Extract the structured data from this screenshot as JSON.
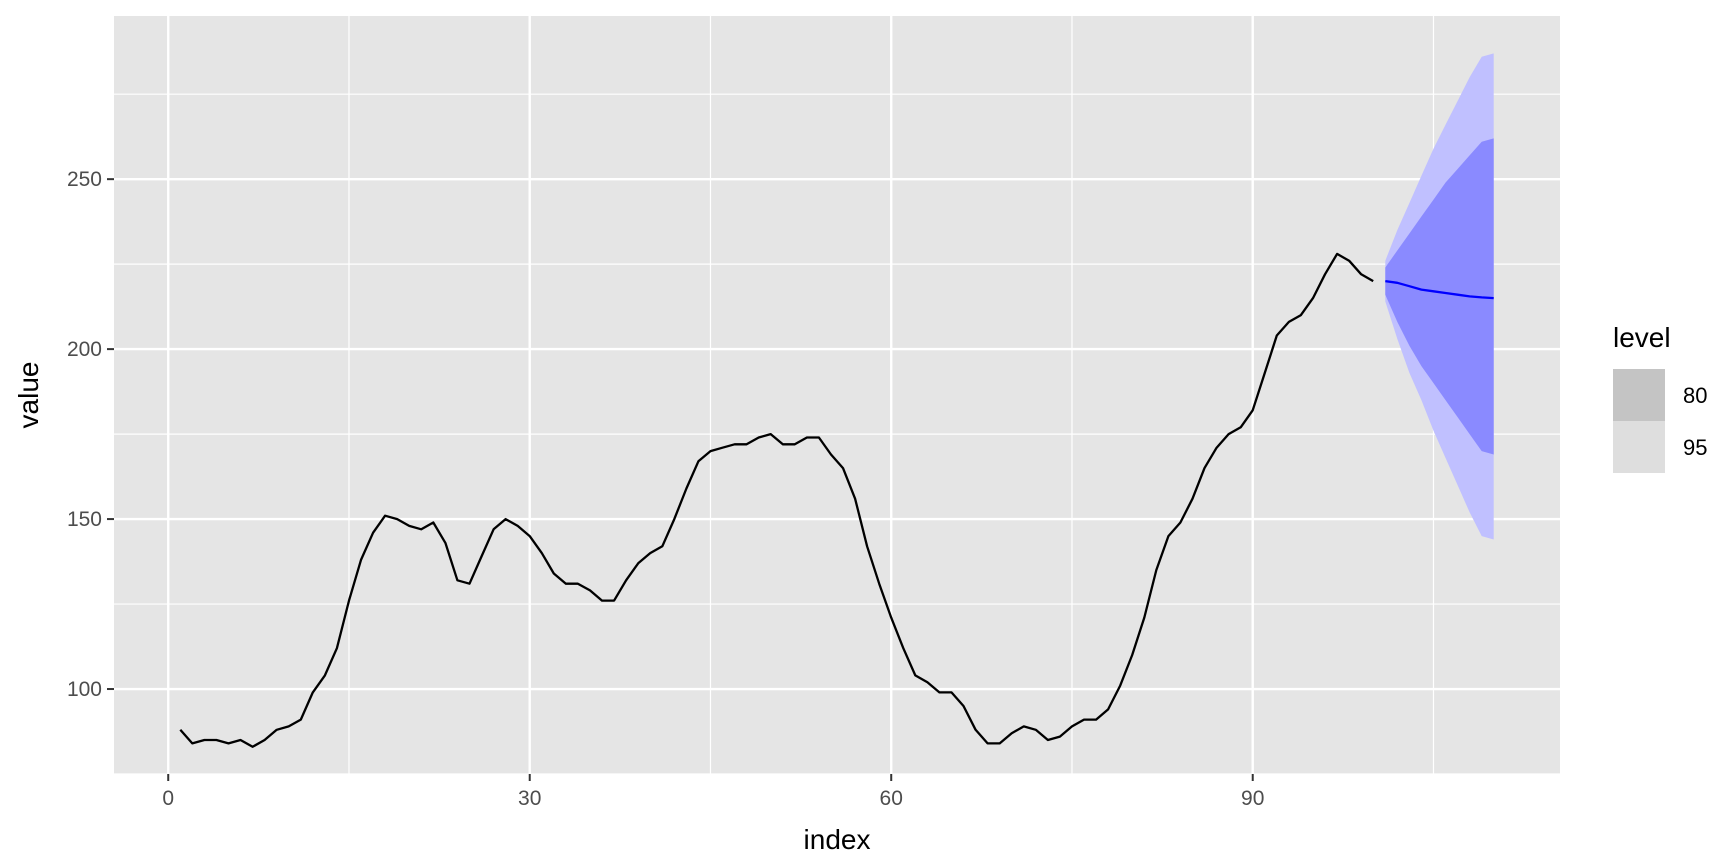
{
  "chart_data": {
    "type": "line",
    "xlabel": "index",
    "ylabel": "value",
    "xlim": [
      -4.5,
      115.5
    ],
    "ylim": [
      75,
      298
    ],
    "x_ticks": [
      0,
      30,
      60,
      90
    ],
    "y_ticks": [
      100,
      150,
      200,
      250
    ],
    "grid": true,
    "legend": {
      "title": "level",
      "position": "right",
      "entries": [
        {
          "label": "80",
          "color": "#c4c4c4"
        },
        {
          "label": "95",
          "color": "#dedede"
        }
      ]
    },
    "colors": {
      "panel": "#e5e5e5",
      "grid": "#ffffff",
      "history_line": "#000000",
      "forecast_line": "#0000ff",
      "band_80": "#8a8aff",
      "band_95": "#c0c0ff"
    },
    "history": {
      "x": [
        1,
        2,
        3,
        4,
        5,
        6,
        7,
        8,
        9,
        10,
        11,
        12,
        13,
        14,
        15,
        16,
        17,
        18,
        19,
        20,
        21,
        22,
        23,
        24,
        25,
        26,
        27,
        28,
        29,
        30,
        31,
        32,
        33,
        34,
        35,
        36,
        37,
        38,
        39,
        40,
        41,
        42,
        43,
        44,
        45,
        46,
        47,
        48,
        49,
        50,
        51,
        52,
        53,
        54,
        55,
        56,
        57,
        58,
        59,
        60,
        61,
        62,
        63,
        64,
        65,
        66,
        67,
        68,
        69,
        70,
        71,
        72,
        73,
        74,
        75,
        76,
        77,
        78,
        79,
        80,
        81,
        82,
        83,
        84,
        85,
        86,
        87,
        88,
        89,
        90,
        91,
        92,
        93,
        94,
        95,
        96,
        97,
        98,
        99,
        100
      ],
      "y": [
        88,
        84,
        85,
        85,
        84,
        85,
        83,
        85,
        88,
        89,
        91,
        99,
        104,
        112,
        126,
        138,
        146,
        151,
        150,
        148,
        147,
        149,
        143,
        132,
        131,
        139,
        147,
        150,
        148,
        145,
        140,
        134,
        131,
        131,
        129,
        126,
        126,
        132,
        137,
        140,
        142,
        150,
        159,
        167,
        170,
        171,
        172,
        172,
        174,
        175,
        172,
        172,
        174,
        174,
        169,
        165,
        156,
        142,
        131,
        121,
        112,
        104,
        102,
        99,
        99,
        95,
        88,
        84,
        84,
        87,
        89,
        88,
        85,
        86,
        89,
        91,
        91,
        94,
        101,
        110,
        121,
        135,
        145,
        149,
        156,
        165,
        171,
        175,
        177,
        182,
        193,
        204,
        208,
        210,
        215,
        222,
        228,
        226,
        222,
        220
      ]
    },
    "forecast": {
      "x": [
        101,
        102,
        103,
        104,
        105,
        106,
        107,
        108,
        109,
        110
      ],
      "mean": [
        220,
        219.5,
        218.5,
        217.5,
        217,
        216.5,
        216,
        215.5,
        215.2,
        215
      ],
      "lo80": [
        216,
        208,
        201,
        195,
        190,
        185,
        180,
        175,
        170,
        169
      ],
      "hi80": [
        224,
        229,
        234,
        239,
        244,
        249,
        253,
        257,
        261,
        262
      ],
      "lo95": [
        214,
        203,
        193,
        185,
        176,
        168,
        160,
        152,
        145,
        144
      ],
      "hi95": [
        226,
        235,
        243,
        251,
        259,
        266,
        273,
        280,
        286,
        287
      ]
    }
  }
}
